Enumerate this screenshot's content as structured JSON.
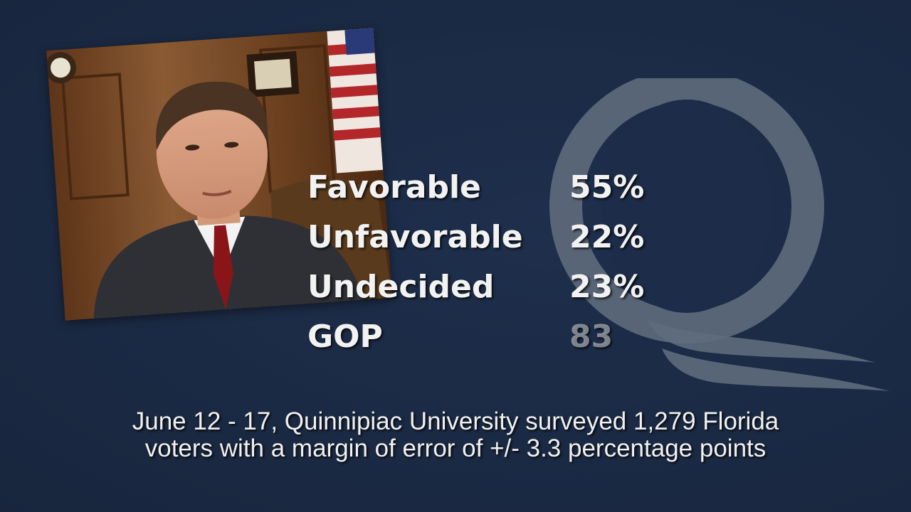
{
  "stats": [
    {
      "label": "Favorable",
      "value": "55%"
    },
    {
      "label": "Unfavorable",
      "value": "22%"
    },
    {
      "label": "Undecided",
      "value": "23%"
    },
    {
      "label": "GOP",
      "value": "83"
    }
  ],
  "caption": {
    "line1": "June 12 - 17, Quinnipiac University surveyed 1,279 Florida",
    "line2": "voters with a margin of error of +/- 3.3 percentage points"
  },
  "logo": {
    "letter": "Q",
    "icon": "quinnipiac-q-logo"
  },
  "colors": {
    "background": "#1b2a44",
    "text": "#f2f2f2",
    "logo_watermark": "#5f6b7c"
  }
}
